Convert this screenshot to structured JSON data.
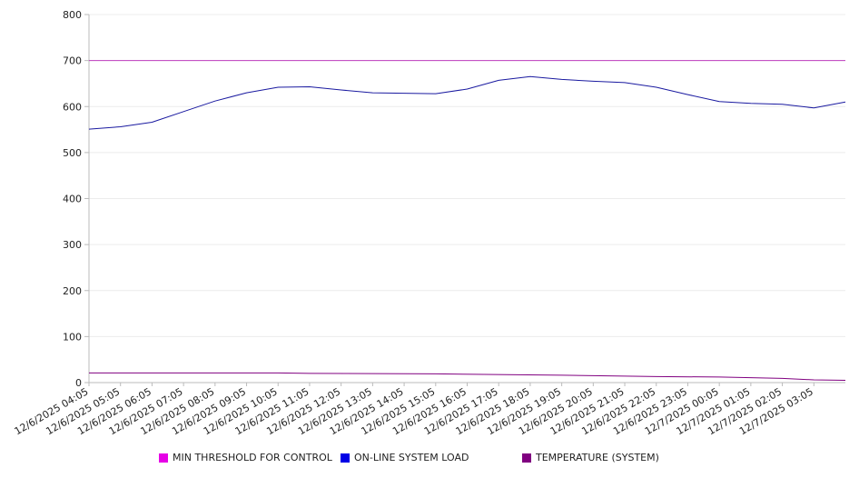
{
  "chart_data": {
    "type": "line",
    "ylim": [
      0,
      800
    ],
    "y_ticks": [
      "0",
      "100",
      "200",
      "300",
      "400",
      "500",
      "600",
      "700",
      "800"
    ],
    "x_ticks": [
      "12/6/2025 04:05",
      "12/6/2025 05:05",
      "12/6/2025 06:05",
      "12/6/2025 07:05",
      "12/6/2025 08:05",
      "12/6/2025 09:05",
      "12/6/2025 10:05",
      "12/6/2025 11:05",
      "12/6/2025 12:05",
      "12/6/2025 13:05",
      "12/6/2025 14:05",
      "12/6/2025 15:05",
      "12/6/2025 16:05",
      "12/6/2025 17:05",
      "12/6/2025 18:05",
      "12/6/2025 19:05",
      "12/6/2025 20:05",
      "12/6/2025 21:05",
      "12/6/2025 22:05",
      "12/6/2025 23:05",
      "12/7/2025 00:05",
      "12/7/2025 01:05",
      "12/7/2025 02:05",
      "12/7/2025 03:05"
    ],
    "x_range": [
      "12/6/2025 04:05",
      "12/7/2025 04:05"
    ],
    "grid": "horizontal",
    "legend_position": "bottom",
    "series": [
      {
        "name": "MIN THRESHOLD FOR CONTROL",
        "color": "#e600e6",
        "line_color": "#c03ec0",
        "x": [
          "12/6/2025 04:05",
          "12/7/2025 04:05"
        ],
        "values": [
          700,
          700
        ]
      },
      {
        "name": "ON-LINE SYSTEM LOAD",
        "color": "#0000e6",
        "line_color": "#1a1aa0",
        "x": [
          "12/6/2025 04:05",
          "12/6/2025 05:05",
          "12/6/2025 06:05",
          "12/6/2025 07:05",
          "12/6/2025 08:05",
          "12/6/2025 09:05",
          "12/6/2025 10:05",
          "12/6/2025 11:05",
          "12/6/2025 12:05",
          "12/6/2025 13:05",
          "12/6/2025 14:05",
          "12/6/2025 15:05",
          "12/6/2025 16:05",
          "12/6/2025 17:05",
          "12/6/2025 18:05",
          "12/6/2025 19:05",
          "12/6/2025 20:05",
          "12/6/2025 21:05",
          "12/6/2025 22:05",
          "12/6/2025 23:05",
          "12/7/2025 00:05",
          "12/7/2025 01:05",
          "12/7/2025 02:05",
          "12/7/2025 03:05",
          "12/7/2025 04:05"
        ],
        "values": [
          551,
          556,
          566,
          589,
          612,
          630,
          642,
          643,
          636,
          630,
          629,
          628,
          638,
          657,
          665,
          659,
          655,
          652,
          642,
          626,
          611,
          607,
          605,
          597,
          610
        ]
      },
      {
        "name": "TEMPERATURE (SYSTEM)",
        "color": "#800080",
        "line_color": "#800080",
        "x": [
          "12/6/2025 04:05",
          "12/6/2025 10:05",
          "12/6/2025 11:05",
          "12/6/2025 15:05",
          "12/6/2025 19:05",
          "12/6/2025 22:05",
          "12/7/2025 00:05",
          "12/7/2025 02:05",
          "12/7/2025 03:05",
          "12/7/2025 04:05"
        ],
        "values": [
          21,
          21,
          20,
          19,
          16,
          13,
          12,
          9,
          6,
          5
        ]
      }
    ]
  }
}
